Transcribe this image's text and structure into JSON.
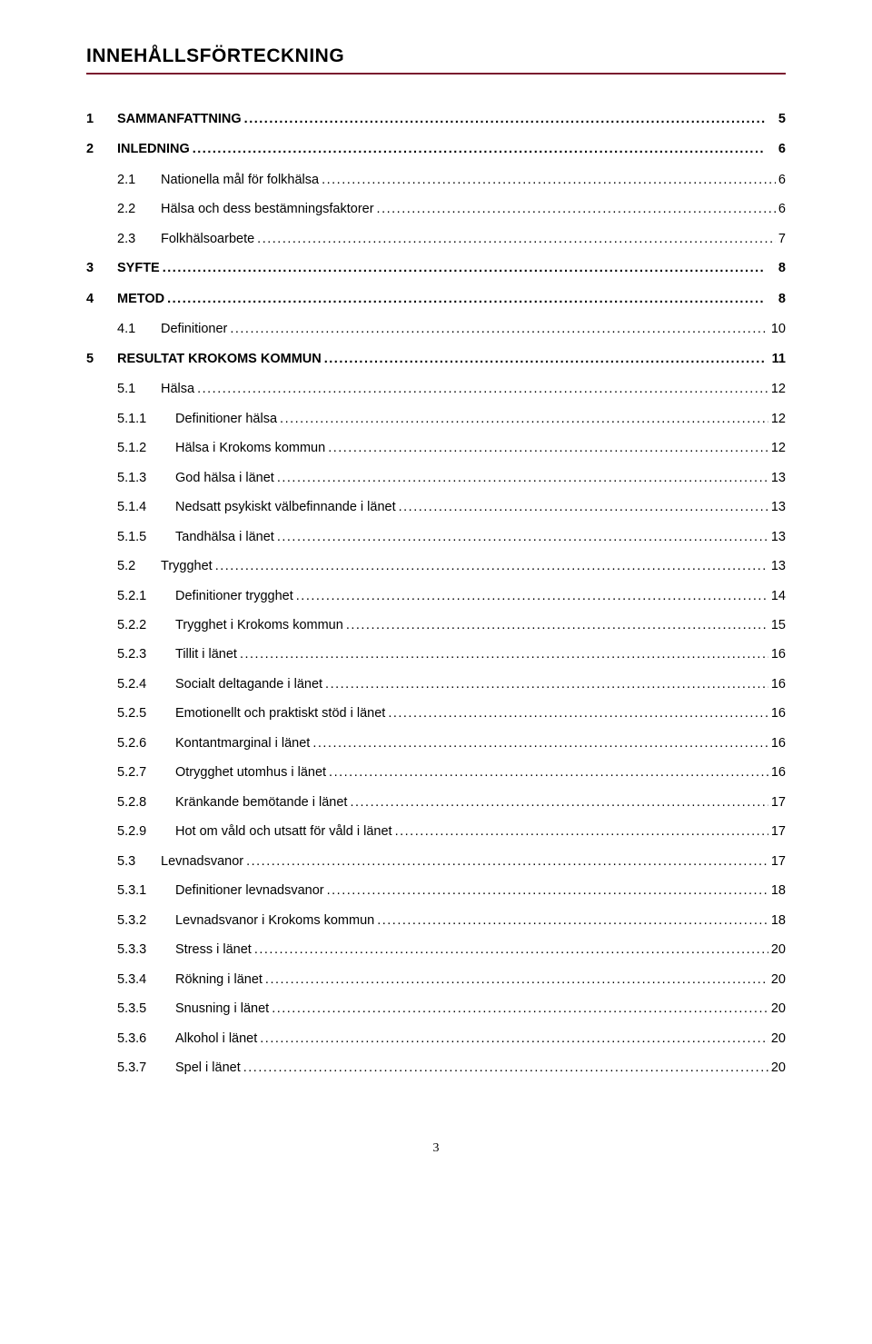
{
  "title": "INNEHÅLLSFÖRTECKNING",
  "accent_color": "#7a1a2f",
  "page_number": "3",
  "entries": [
    {
      "level": 1,
      "num": "1",
      "label": "SAMMANFATTNING",
      "page": "5"
    },
    {
      "level": 1,
      "num": "2",
      "label": "INLEDNING",
      "page": "6"
    },
    {
      "level": 2,
      "num": "2.1",
      "label": "Nationella mål för folkhälsa",
      "page": "6"
    },
    {
      "level": 2,
      "num": "2.2",
      "label": "Hälsa och dess bestämningsfaktorer",
      "page": "6"
    },
    {
      "level": 2,
      "num": "2.3",
      "label": "Folkhälsoarbete",
      "page": "7"
    },
    {
      "level": 1,
      "num": "3",
      "label": "SYFTE",
      "page": "8"
    },
    {
      "level": 1,
      "num": "4",
      "label": "METOD",
      "page": "8"
    },
    {
      "level": 2,
      "num": "4.1",
      "label": "Definitioner",
      "page": "10"
    },
    {
      "level": 1,
      "num": "5",
      "label": "RESULTAT KROKOMS KOMMUN",
      "page": "11"
    },
    {
      "level": 2,
      "num": "5.1",
      "label": "Hälsa",
      "page": "12"
    },
    {
      "level": 3,
      "num": "5.1.1",
      "label": "Definitioner hälsa",
      "page": "12"
    },
    {
      "level": 3,
      "num": "5.1.2",
      "label": "Hälsa i Krokoms kommun",
      "page": "12"
    },
    {
      "level": 3,
      "num": "5.1.3",
      "label": "God hälsa i länet",
      "page": "13"
    },
    {
      "level": 3,
      "num": "5.1.4",
      "label": "Nedsatt psykiskt välbefinnande i länet",
      "page": "13"
    },
    {
      "level": 3,
      "num": "5.1.5",
      "label": "Tandhälsa i länet",
      "page": "13"
    },
    {
      "level": 2,
      "num": "5.2",
      "label": "Trygghet",
      "page": "13"
    },
    {
      "level": 3,
      "num": "5.2.1",
      "label": "Definitioner trygghet",
      "page": "14"
    },
    {
      "level": 3,
      "num": "5.2.2",
      "label": "Trygghet i Krokoms kommun",
      "page": "15"
    },
    {
      "level": 3,
      "num": "5.2.3",
      "label": "Tillit i länet",
      "page": "16"
    },
    {
      "level": 3,
      "num": "5.2.4",
      "label": "Socialt deltagande i länet",
      "page": "16"
    },
    {
      "level": 3,
      "num": "5.2.5",
      "label": "Emotionellt och praktiskt stöd i länet",
      "page": "16"
    },
    {
      "level": 3,
      "num": "5.2.6",
      "label": "Kontantmarginal i länet",
      "page": "16"
    },
    {
      "level": 3,
      "num": "5.2.7",
      "label": "Otrygghet utomhus i länet",
      "page": "16"
    },
    {
      "level": 3,
      "num": "5.2.8",
      "label": "Kränkande bemötande i länet",
      "page": "17"
    },
    {
      "level": 3,
      "num": "5.2.9",
      "label": "Hot om våld och utsatt för våld i länet",
      "page": "17"
    },
    {
      "level": 2,
      "num": "5.3",
      "label": "Levnadsvanor",
      "page": "17"
    },
    {
      "level": 3,
      "num": "5.3.1",
      "label": "Definitioner levnadsvanor",
      "page": "18"
    },
    {
      "level": 3,
      "num": "5.3.2",
      "label": "Levnadsvanor i Krokoms kommun",
      "page": "18"
    },
    {
      "level": 3,
      "num": "5.3.3",
      "label": "Stress i länet",
      "page": "20"
    },
    {
      "level": 3,
      "num": "5.3.4",
      "label": "Rökning i länet",
      "page": "20"
    },
    {
      "level": 3,
      "num": "5.3.5",
      "label": "Snusning i länet",
      "page": "20"
    },
    {
      "level": 3,
      "num": "5.3.6",
      "label": "Alkohol i länet",
      "page": "20"
    },
    {
      "level": 3,
      "num": "5.3.7",
      "label": "Spel i länet",
      "page": "20"
    }
  ]
}
